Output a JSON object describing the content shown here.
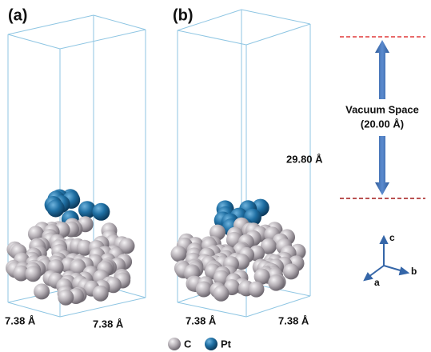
{
  "panels": [
    {
      "label": "(a)",
      "dim_a": "7.38 Å",
      "dim_b": "7.38 Å"
    },
    {
      "label": "(b)",
      "dim_a": "7.38 Å",
      "dim_b": "7.38 Å",
      "height": "29.80 Å"
    }
  ],
  "vacuum": {
    "title": "Vacuum Space",
    "value": "(20.00 Å)"
  },
  "axes": {
    "c": "c",
    "b": "b",
    "a": "a"
  },
  "legend": [
    {
      "label": "C"
    },
    {
      "label": "Pt"
    }
  ]
}
